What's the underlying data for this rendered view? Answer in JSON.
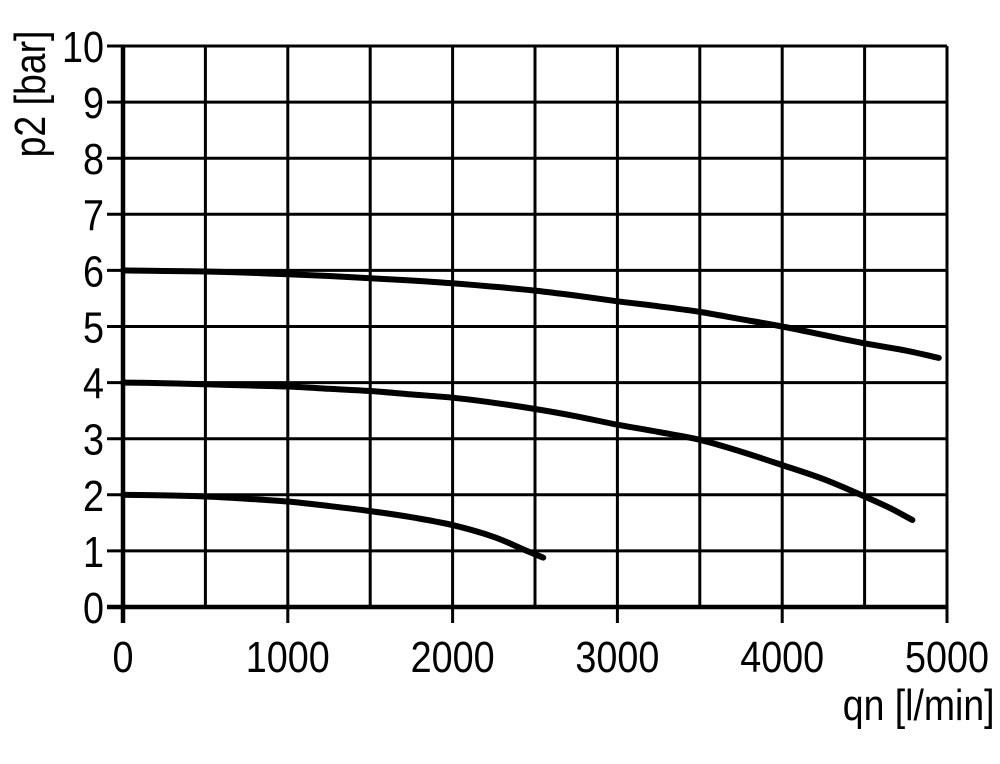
{
  "figure": {
    "background": "#ffffff",
    "ink": "#000000"
  },
  "chart_data": {
    "type": "line",
    "title": "",
    "xlabel": "qn [l/min]",
    "ylabel": "p2 [bar]",
    "xlim": [
      0,
      5000
    ],
    "ylim": [
      0,
      10
    ],
    "grid": true,
    "legend": "none",
    "x_grid_step": 500,
    "y_grid_step": 1,
    "x_ticks": [
      {
        "value": 0,
        "label": "0"
      },
      {
        "value": 1000,
        "label": "1000"
      },
      {
        "value": 2000,
        "label": "2000"
      },
      {
        "value": 3000,
        "label": "3000"
      },
      {
        "value": 4000,
        "label": "4000"
      },
      {
        "value": 5000,
        "label": "5000"
      }
    ],
    "y_ticks": [
      {
        "value": 0,
        "label": "0"
      },
      {
        "value": 1,
        "label": "1"
      },
      {
        "value": 2,
        "label": "2"
      },
      {
        "value": 3,
        "label": "3"
      },
      {
        "value": 4,
        "label": "4"
      },
      {
        "value": 5,
        "label": "5"
      },
      {
        "value": 6,
        "label": "6"
      },
      {
        "value": 7,
        "label": "7"
      },
      {
        "value": 8,
        "label": "8"
      },
      {
        "value": 9,
        "label": "9"
      },
      {
        "value": 10,
        "label": "10"
      }
    ],
    "series": [
      {
        "name": "curve starting at 6 bar",
        "points": [
          [
            0,
            6.0
          ],
          [
            250,
            5.99
          ],
          [
            500,
            5.98
          ],
          [
            750,
            5.96
          ],
          [
            1000,
            5.93
          ],
          [
            1250,
            5.9
          ],
          [
            1500,
            5.86
          ],
          [
            1750,
            5.82
          ],
          [
            2000,
            5.77
          ],
          [
            2250,
            5.71
          ],
          [
            2500,
            5.64
          ],
          [
            2750,
            5.55
          ],
          [
            3000,
            5.45
          ],
          [
            3250,
            5.36
          ],
          [
            3500,
            5.26
          ],
          [
            3750,
            5.13
          ],
          [
            4000,
            5.0
          ],
          [
            4250,
            4.85
          ],
          [
            4500,
            4.7
          ],
          [
            4750,
            4.57
          ],
          [
            4950,
            4.44
          ]
        ]
      },
      {
        "name": "curve starting at 4 bar",
        "points": [
          [
            0,
            4.0
          ],
          [
            250,
            3.99
          ],
          [
            500,
            3.97
          ],
          [
            750,
            3.95
          ],
          [
            1000,
            3.93
          ],
          [
            1250,
            3.89
          ],
          [
            1500,
            3.85
          ],
          [
            1750,
            3.79
          ],
          [
            2000,
            3.73
          ],
          [
            2250,
            3.64
          ],
          [
            2500,
            3.53
          ],
          [
            2750,
            3.4
          ],
          [
            3000,
            3.25
          ],
          [
            3250,
            3.12
          ],
          [
            3500,
            2.98
          ],
          [
            3750,
            2.77
          ],
          [
            4000,
            2.53
          ],
          [
            4250,
            2.28
          ],
          [
            4500,
            1.97
          ],
          [
            4650,
            1.77
          ],
          [
            4790,
            1.55
          ]
        ]
      },
      {
        "name": "curve starting at 2 bar",
        "points": [
          [
            0,
            2.0
          ],
          [
            250,
            1.99
          ],
          [
            500,
            1.97
          ],
          [
            750,
            1.93
          ],
          [
            1000,
            1.88
          ],
          [
            1250,
            1.8
          ],
          [
            1500,
            1.71
          ],
          [
            1750,
            1.6
          ],
          [
            2000,
            1.46
          ],
          [
            2250,
            1.25
          ],
          [
            2450,
            1.0
          ],
          [
            2550,
            0.88
          ]
        ]
      }
    ]
  }
}
